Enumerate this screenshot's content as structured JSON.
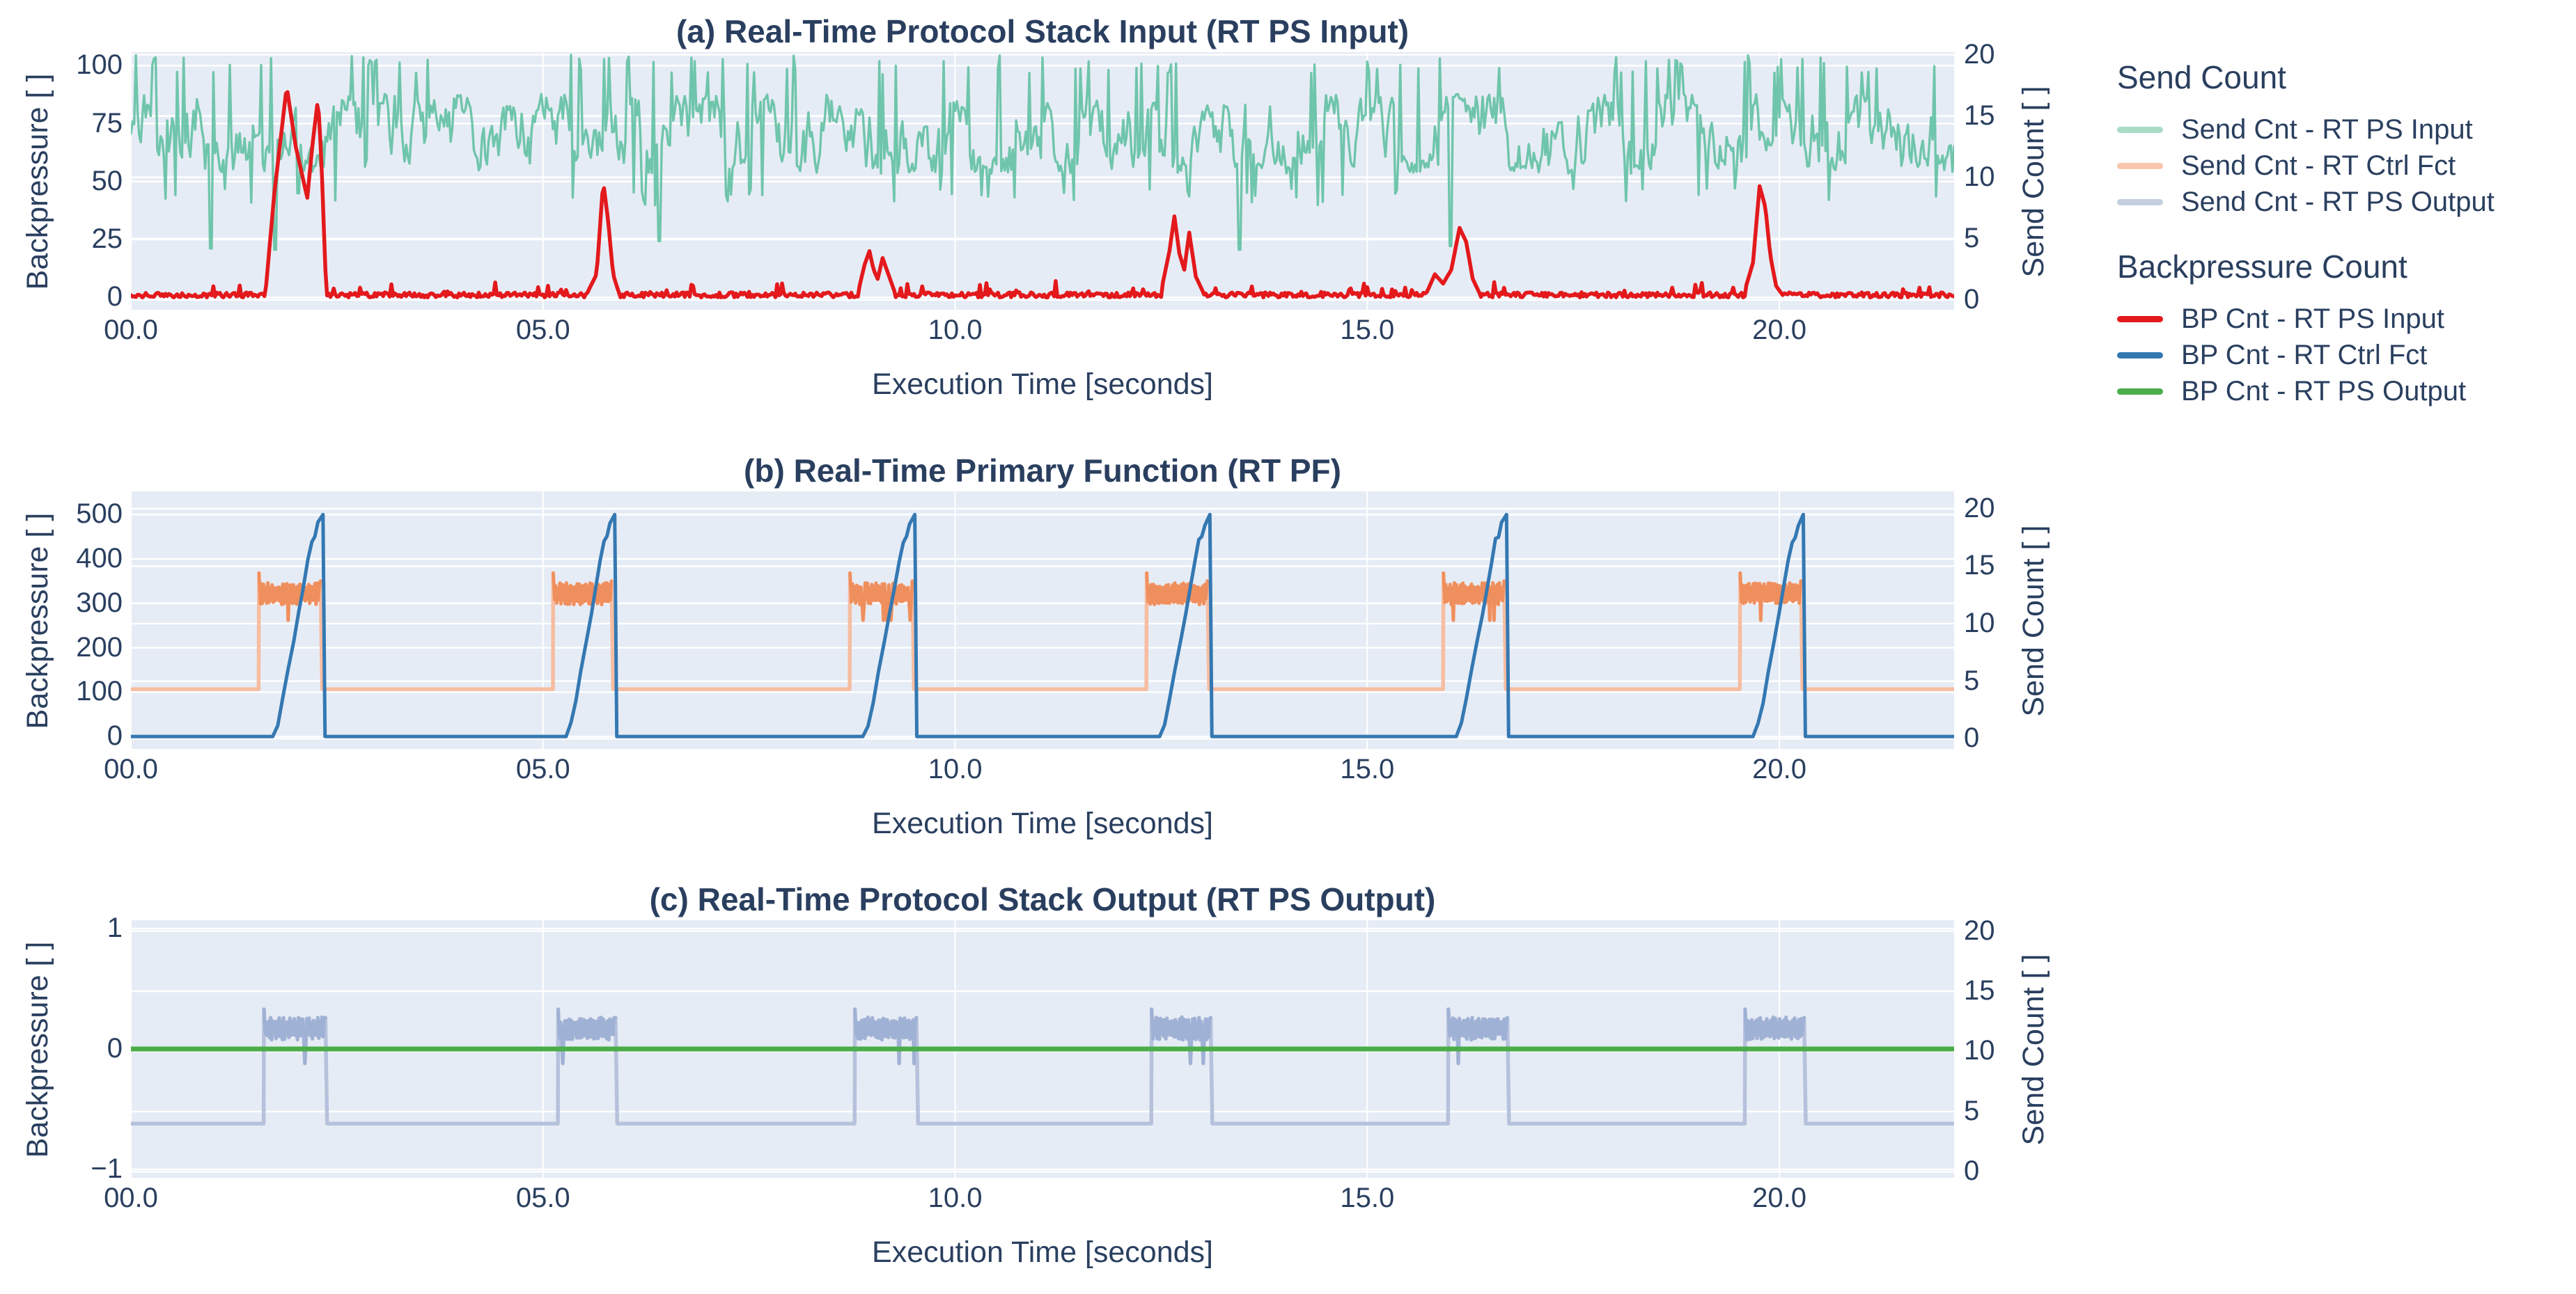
{
  "figure": {
    "background": "#ffffff",
    "plot_background": "#e6ecf5",
    "grid_color": "#ffffff",
    "text_color": "#2a3f5f",
    "seed": 7
  },
  "legend": {
    "groups": [
      {
        "title": "Send Count",
        "items": [
          {
            "label": "Send Cnt - RT PS Input",
            "color": "#a9dcc7"
          },
          {
            "label": "Send Cnt - RT Ctrl Fct",
            "color": "#f8c6ab"
          },
          {
            "label": "Send Cnt - RT PS Output",
            "color": "#c5cede"
          }
        ]
      },
      {
        "title": "Backpressure Count",
        "items": [
          {
            "label": "BP Cnt - RT PS Input",
            "color": "#e3191c"
          },
          {
            "label": "BP Cnt - RT Ctrl Fct",
            "color": "#3478b2"
          },
          {
            "label": "BP Cnt - RT PS Output",
            "color": "#4bad49"
          }
        ]
      }
    ]
  },
  "chart_data": [
    {
      "type": "line",
      "panel": "a",
      "title": "(a) Real-Time Protocol Stack Input (RT PS Input)",
      "xlabel": "Execution Time [seconds]",
      "ylabel_left": "Backpressure [ ]",
      "ylabel_right": "Send Count [ ]",
      "x_tick_labels": [
        "00.0",
        "05.0",
        "10.0",
        "15.0",
        "20.0"
      ],
      "x_tick_values": [
        0,
        5,
        10,
        15,
        20
      ],
      "x_range": [
        0,
        22.12
      ],
      "left_tick_labels": [
        "0",
        "25",
        "50",
        "75",
        "100"
      ],
      "left_tick_values": [
        0,
        25,
        50,
        75,
        100
      ],
      "left_range": [
        -5.3,
        105.8
      ],
      "right_tick_labels": [
        "0",
        "5",
        "10",
        "15",
        "20"
      ],
      "right_tick_values": [
        0,
        5,
        10,
        15,
        20
      ],
      "right_range": [
        -0.8,
        20.2
      ],
      "grid": true,
      "series": [
        {
          "name": "Send Cnt - RT PS Input",
          "axis": "right",
          "style": "noisy_band",
          "color": "#5ebfa0",
          "line_width": 3.4,
          "opacity": 0.88,
          "base_band": [
            10.3,
            16.8
          ],
          "low_band": [
            10.4,
            15.9
          ],
          "spike_top": 20.0,
          "spike_prob": 0.09,
          "dip_prob": 0.05,
          "low_windows": [
            [
              1.72,
              2.42
            ],
            [
              4.35,
              4.95
            ],
            [
              8.5,
              9.0
            ],
            [
              9.3,
              9.75
            ],
            [
              12.9,
              13.45
            ],
            [
              16.85,
              17.4
            ],
            [
              21.2,
              21.75
            ]
          ],
          "deep_dips": [
            {
              "t": 0.97,
              "v": 4.2
            },
            {
              "t": 1.75,
              "v": 4.1
            },
            {
              "t": 2.03,
              "v": 8.7
            },
            {
              "t": 6.4,
              "v": 4.8
            },
            {
              "t": 13.45,
              "v": 4.1
            },
            {
              "t": 16.0,
              "v": 4.4
            }
          ]
        },
        {
          "name": "BP Cnt - RT PS Input",
          "axis": "left",
          "style": "baseline_peaks",
          "color": "#e3191c",
          "line_width": 5.5,
          "opacity": 1,
          "noise_max": 2.2,
          "bump_prob": 0.07,
          "bump_max": 5,
          "peak_events": [
            [
              [
                1.63,
                1
              ],
              [
                1.74,
                45
              ],
              [
                1.89,
                91
              ],
              [
                2.0,
                65
              ],
              [
                2.14,
                43
              ],
              [
                2.2,
                65
              ],
              [
                2.27,
                86
              ],
              [
                2.31,
                60
              ],
              [
                2.37,
                2
              ]
            ],
            [
              [
                5.55,
                3
              ],
              [
                5.65,
                10
              ],
              [
                5.73,
                50
              ],
              [
                5.79,
                33
              ],
              [
                5.85,
                10
              ],
              [
                5.92,
                2
              ]
            ],
            [
              [
                8.82,
                2
              ],
              [
                8.9,
                14
              ],
              [
                8.96,
                20
              ],
              [
                9.01,
                12
              ],
              [
                9.06,
                8
              ],
              [
                9.12,
                17
              ],
              [
                9.18,
                11
              ],
              [
                9.26,
                3
              ]
            ],
            [
              [
                12.5,
                3
              ],
              [
                12.6,
                20
              ],
              [
                12.66,
                35
              ],
              [
                12.72,
                19
              ],
              [
                12.78,
                12
              ],
              [
                12.84,
                28
              ],
              [
                12.92,
                9
              ],
              [
                13.0,
                3
              ]
            ],
            [
              [
                15.72,
                2
              ],
              [
                15.82,
                10
              ],
              [
                15.92,
                6
              ],
              [
                16.02,
                12
              ],
              [
                16.12,
                30
              ],
              [
                16.2,
                24
              ],
              [
                16.28,
                8
              ],
              [
                16.36,
                2
              ]
            ],
            [
              [
                19.58,
                3
              ],
              [
                19.68,
                15
              ],
              [
                19.76,
                48
              ],
              [
                19.83,
                39
              ],
              [
                19.89,
                18
              ],
              [
                19.96,
                5
              ],
              [
                20.02,
                2
              ]
            ]
          ]
        }
      ]
    },
    {
      "type": "line",
      "panel": "b",
      "title": "(b) Real-Time Primary Function (RT PF)",
      "xlabel": "Execution Time [seconds]",
      "ylabel_left": "Backpressure [ ]",
      "ylabel_right": "Send Count [ ]",
      "x_tick_labels": [
        "00.0",
        "05.0",
        "10.0",
        "15.0",
        "20.0"
      ],
      "x_tick_values": [
        0,
        5,
        10,
        15,
        20
      ],
      "x_range": [
        0,
        22.12
      ],
      "left_tick_labels": [
        "0",
        "100",
        "200",
        "300",
        "400",
        "500"
      ],
      "left_tick_values": [
        0,
        100,
        200,
        300,
        400,
        500
      ],
      "left_range": [
        -28,
        552
      ],
      "right_tick_labels": [
        "0",
        "5",
        "10",
        "15",
        "20"
      ],
      "right_tick_values": [
        0,
        5,
        10,
        15,
        20
      ],
      "right_range": [
        -0.9,
        21.5
      ],
      "grid": true,
      "series": [
        {
          "name": "Send Cnt - RT Ctrl Fct",
          "axis": "right",
          "style": "step_burst",
          "color": "#f7bda1",
          "burst_color": "#ef8f5e",
          "line_width": 5.5,
          "opacity": 1,
          "baseline": 4.3,
          "burst_band": [
            11.9,
            13.3
          ],
          "burst_spike": 14.4,
          "notch_value": 10.3,
          "notch_prob": 0.04,
          "bursts": [
            [
              1.55,
              2.32
            ],
            [
              5.12,
              5.85
            ],
            [
              8.72,
              9.5
            ],
            [
              12.32,
              13.08
            ],
            [
              15.92,
              16.68
            ],
            [
              19.52,
              20.28
            ]
          ]
        },
        {
          "name": "BP Cnt - RT Ctrl Fct",
          "axis": "left",
          "style": "ramp",
          "color": "#3478b2",
          "line_width": 5,
          "opacity": 1,
          "peak": 500,
          "ramp_shape": [
            [
              0,
              0
            ],
            [
              0.1,
              28
            ],
            [
              0.2,
              80
            ],
            [
              0.3,
              142
            ],
            [
              0.42,
              215
            ],
            [
              0.52,
              278
            ],
            [
              0.6,
              330
            ],
            [
              0.7,
              396
            ],
            [
              0.78,
              440
            ],
            [
              0.84,
              450
            ],
            [
              0.9,
              476
            ],
            [
              1,
              500
            ]
          ],
          "ramps": [
            [
              1.72,
              2.33
            ],
            [
              5.28,
              5.87
            ],
            [
              8.88,
              9.51
            ],
            [
              12.48,
              13.09
            ],
            [
              16.08,
              16.69
            ],
            [
              19.68,
              20.29
            ]
          ]
        }
      ]
    },
    {
      "type": "line",
      "panel": "c",
      "title": "(c) Real-Time Protocol Stack Output (RT PS Output)",
      "xlabel": "Execution Time [seconds]",
      "ylabel_left": "Backpressure [ ]",
      "ylabel_right": "Send Count [ ]",
      "x_tick_labels": [
        "00.0",
        "05.0",
        "10.0",
        "15.0",
        "20.0"
      ],
      "x_tick_values": [
        0,
        5,
        10,
        15,
        20
      ],
      "x_range": [
        0,
        22.12
      ],
      "left_tick_labels": [
        "−1",
        "0",
        "1"
      ],
      "left_tick_values": [
        -1,
        0,
        1
      ],
      "left_range": [
        -1.07,
        1.07
      ],
      "right_tick_labels": [
        "0",
        "5",
        "10",
        "15",
        "20"
      ],
      "right_tick_values": [
        0,
        5,
        10,
        15,
        20
      ],
      "right_range": [
        -0.5,
        20.9
      ],
      "grid": true,
      "series": [
        {
          "name": "Send Cnt - RT PS Output",
          "axis": "right",
          "style": "step_burst",
          "color": "#b6c1dc",
          "burst_color": "#9fb1d4",
          "line_width": 5.5,
          "opacity": 1,
          "baseline": 4.0,
          "burst_band": [
            11.2,
            12.6
          ],
          "burst_spike": 13.5,
          "notch_value": 9.0,
          "notch_prob": 0.03,
          "bursts": [
            [
              1.61,
              2.38
            ],
            [
              5.18,
              5.9
            ],
            [
              8.78,
              9.55
            ],
            [
              12.38,
              13.12
            ],
            [
              15.98,
              16.72
            ],
            [
              19.58,
              20.32
            ]
          ]
        },
        {
          "name": "BP Cnt - RT PS Output",
          "axis": "left",
          "style": "flat",
          "color": "#4bad49",
          "line_width": 7,
          "opacity": 1,
          "value": 0
        }
      ]
    }
  ]
}
